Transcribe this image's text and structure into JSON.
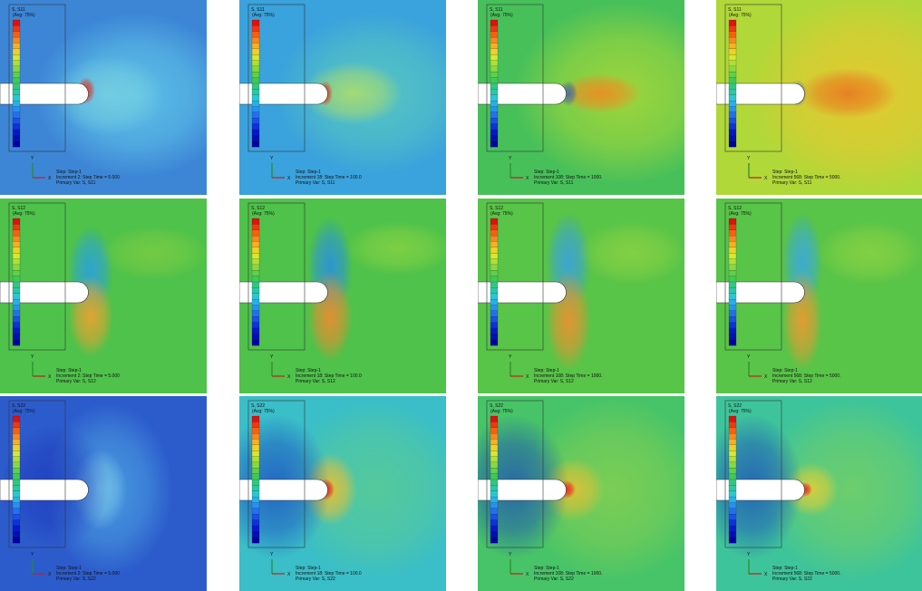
{
  "axis_labels": {
    "x": "X",
    "y": "Y"
  },
  "panels": [
    {
      "title": "S, S11",
      "avg": "(Avg: 75%)",
      "step": "Step: Step-1",
      "increment": "Increment    2: Step Time =    5.000",
      "primary": "Primary Var: S, S11"
    },
    {
      "title": "S, S11",
      "avg": "(Avg: 75%)",
      "step": "Step: Step-1",
      "increment": "Increment   18: Step Time =    100.0",
      "primary": "Primary Var: S, S11"
    },
    {
      "title": "S, S11",
      "avg": "(Avg: 75%)",
      "step": "Step: Step-1",
      "increment": "Increment  108: Step Time =    1000.",
      "primary": "Primary Var: S, S11"
    },
    {
      "title": "S, S11",
      "avg": "(Avg: 75%)",
      "step": "Step: Step-1",
      "increment": "Increment  568: Step Time =    5000.",
      "primary": "Primary Var: S, S11"
    },
    {
      "title": "S, S12",
      "avg": "(Avg: 75%)",
      "step": "Step: Step-1",
      "increment": "Increment    2: Step Time =    5.000",
      "primary": "Primary Var: S, S12"
    },
    {
      "title": "S, S12",
      "avg": "(Avg: 75%)",
      "step": "Step: Step-1",
      "increment": "Increment   18: Step Time =    100.0",
      "primary": "Primary Var: S, S12"
    },
    {
      "title": "S, S12",
      "avg": "(Avg: 75%)",
      "step": "Step: Step-1",
      "increment": "Increment  108: Step Time =    1000.",
      "primary": "Primary Var: S, S12"
    },
    {
      "title": "S, S12",
      "avg": "(Avg: 75%)",
      "step": "Step: Step-1",
      "increment": "Increment  568: Step Time =    5000.",
      "primary": "Primary Var: S, S12"
    },
    {
      "title": "S, S22",
      "avg": "(Avg: 75%)",
      "step": "Step: Step-1",
      "increment": "Increment    2: Step Time =    5.000",
      "primary": "Primary Var: S, S22"
    },
    {
      "title": "S, S22",
      "avg": "(Avg: 75%)",
      "step": "Step: Step-1",
      "increment": "Increment   18: Step Time =    100.0",
      "primary": "Primary Var: S, S22"
    },
    {
      "title": "S, S22",
      "avg": "(Avg: 75%)",
      "step": "Step: Step-1",
      "increment": "Increment  108: Step Time =    1000.",
      "primary": "Primary Var: S, S22"
    },
    {
      "title": "S, S22",
      "avg": "(Avg: 75%)",
      "step": "Step: Step-1",
      "increment": "Increment  568: Step Time =    5000.",
      "primary": "Primary Var: S, S22"
    }
  ]
}
